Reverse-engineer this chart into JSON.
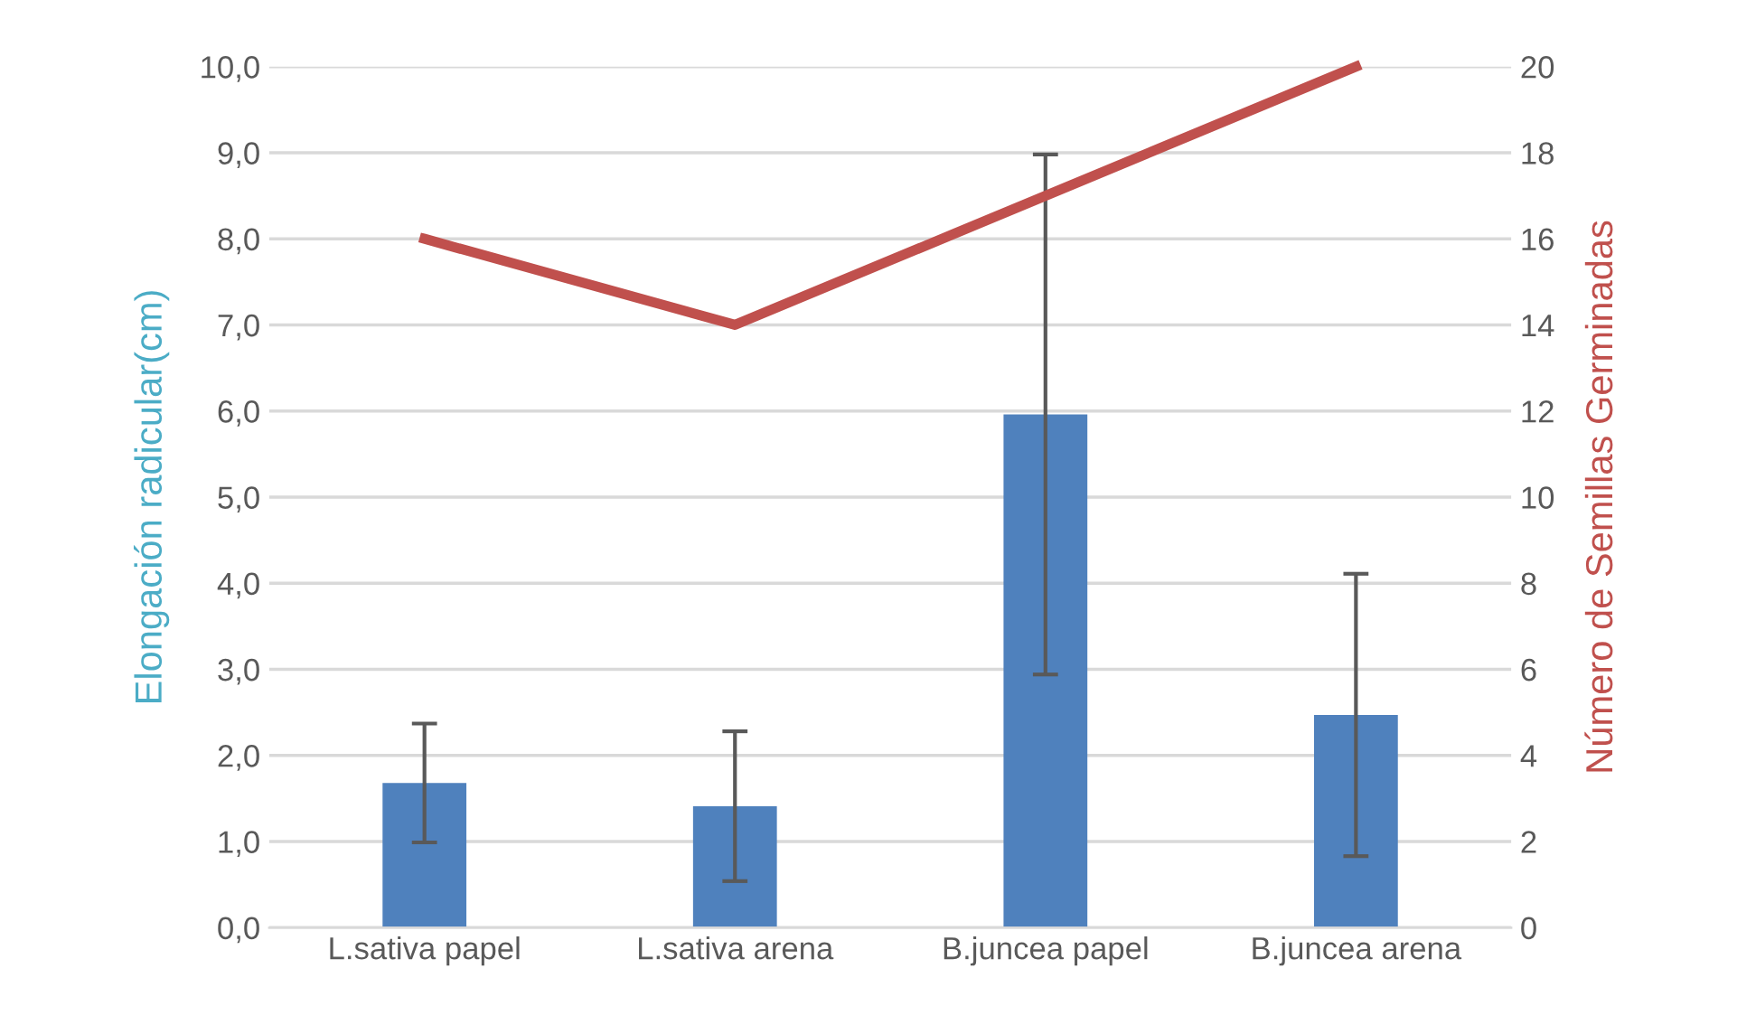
{
  "chart_data": {
    "type": "bar",
    "ylabel": "Elongación radicular(cm)",
    "y2label": "Número de Semillas Germinadas",
    "categories": [
      "L.sativa papel",
      "L.sativa arena",
      "B.juncea papel",
      "B.juncea arena"
    ],
    "series": [
      {
        "color": "#4f81bd",
        "values": [
          1.68,
          1.41,
          5.96,
          2.47
        ],
        "errors": [
          0.69,
          0.87,
          3.02,
          1.64
        ]
      },
      {
        "type": "line",
        "axis": "y2",
        "color": "#c0504d",
        "values": [
          16,
          14,
          17,
          20
        ]
      }
    ],
    "ylim": [
      0,
      10
    ],
    "yticks": [
      {
        "value": 0,
        "label": "0,0"
      },
      {
        "value": 1,
        "label": "1,0"
      },
      {
        "value": 2,
        "label": "2,0"
      },
      {
        "value": 3,
        "label": "3,0"
      },
      {
        "value": 4,
        "label": "4,0"
      },
      {
        "value": 5,
        "label": "5,0"
      },
      {
        "value": 6,
        "label": "6,0"
      },
      {
        "value": 7,
        "label": "7,0"
      },
      {
        "value": 8,
        "label": "8,0"
      },
      {
        "value": 9,
        "label": "9,0"
      },
      {
        "value": 10,
        "label": "10,0"
      }
    ],
    "y2lim": [
      0,
      20
    ],
    "y2ticks": [
      0,
      2,
      4,
      6,
      8,
      10,
      12,
      14,
      16,
      18,
      20
    ],
    "grid": "y",
    "legend": false,
    "marker": "none"
  }
}
